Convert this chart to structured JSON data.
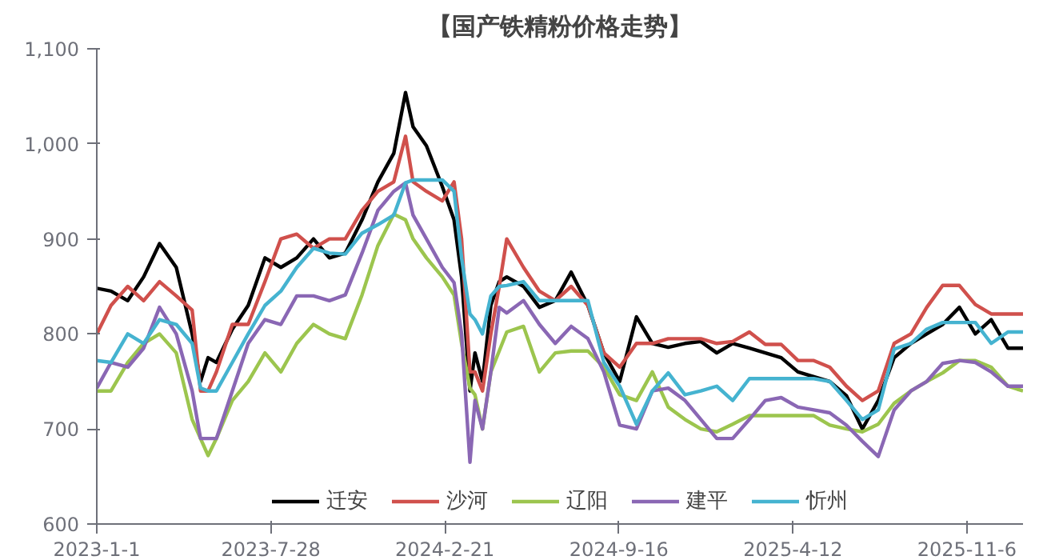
{
  "chart_data": {
    "type": "line",
    "title": "【国产铁精粉价格走势】",
    "x": [
      "2023-01-01",
      "2023-01-18",
      "2023-02-07",
      "2023-02-26",
      "2023-03-17",
      "2023-04-06",
      "2023-04-25",
      "2023-05-05",
      "2023-05-14",
      "2023-05-24",
      "2023-06-12",
      "2023-07-01",
      "2023-07-21",
      "2023-08-09",
      "2023-08-28",
      "2023-09-17",
      "2023-10-06",
      "2023-10-25",
      "2023-11-14",
      "2023-12-03",
      "2023-12-22",
      "2024-01-05",
      "2024-01-14",
      "2024-01-30",
      "2024-02-18",
      "2024-03-03",
      "2024-03-12",
      "2024-03-22",
      "2024-03-28",
      "2024-04-06",
      "2024-04-16",
      "2024-04-26",
      "2024-05-05",
      "2024-05-25",
      "2024-06-13",
      "2024-07-02",
      "2024-07-21",
      "2024-08-10",
      "2024-08-29",
      "2024-09-17",
      "2024-10-07",
      "2024-10-26",
      "2024-11-14",
      "2024-12-04",
      "2024-12-23",
      "2025-01-11",
      "2025-01-30",
      "2025-02-19",
      "2025-03-10",
      "2025-03-29",
      "2025-04-18",
      "2025-05-07",
      "2025-05-26",
      "2025-06-15",
      "2025-07-04",
      "2025-07-23",
      "2025-08-11",
      "2025-08-31",
      "2025-09-19",
      "2025-10-08",
      "2025-10-28",
      "2025-11-16",
      "2025-12-05",
      "2025-12-25",
      "2026-01-12"
    ],
    "series": [
      {
        "name": "迁安",
        "color": "#000000",
        "values": [
          848,
          845,
          835,
          860,
          895,
          870,
          800,
          750,
          775,
          770,
          805,
          830,
          880,
          870,
          880,
          900,
          880,
          885,
          920,
          960,
          990,
          1054,
          1018,
          998,
          955,
          920,
          860,
          740,
          780,
          750,
          830,
          855,
          860,
          850,
          828,
          835,
          865,
          830,
          780,
          750,
          818,
          790,
          786,
          790,
          792,
          780,
          790,
          785,
          780,
          775,
          760,
          755,
          750,
          735,
          700,
          730,
          775,
          790,
          800,
          810,
          828,
          800,
          815,
          785,
          785
        ]
      },
      {
        "name": "沙河",
        "color": "#d0504c",
        "values": [
          800,
          830,
          850,
          835,
          855,
          840,
          825,
          740,
          740,
          760,
          810,
          810,
          855,
          900,
          905,
          890,
          900,
          900,
          930,
          950,
          960,
          1008,
          960,
          950,
          940,
          960,
          900,
          760,
          760,
          740,
          800,
          850,
          900,
          870,
          845,
          835,
          850,
          830,
          780,
          765,
          790,
          790,
          795,
          795,
          795,
          790,
          792,
          802,
          789,
          789,
          772,
          772,
          765,
          745,
          730,
          740,
          790,
          800,
          828,
          851,
          851,
          831,
          821,
          821,
          821
        ]
      },
      {
        "name": "辽阳",
        "color": "#9cc54e",
        "values": [
          740,
          740,
          770,
          790,
          800,
          780,
          710,
          690,
          672,
          690,
          730,
          750,
          780,
          760,
          790,
          810,
          800,
          795,
          841,
          893,
          926,
          920,
          900,
          880,
          860,
          841,
          790,
          743,
          736,
          700,
          760,
          782,
          802,
          808,
          760,
          780,
          782,
          782,
          765,
          736,
          730,
          760,
          723,
          710,
          700,
          697,
          705,
          714,
          714,
          714,
          714,
          714,
          704,
          700,
          697,
          705,
          727,
          740,
          750,
          759,
          772,
          772,
          765,
          745,
          740
        ]
      },
      {
        "name": "建平",
        "color": "#8a67b4",
        "values": [
          743,
          770,
          765,
          785,
          828,
          800,
          740,
          690,
          690,
          690,
          740,
          790,
          815,
          810,
          840,
          840,
          835,
          841,
          885,
          930,
          950,
          959,
          925,
          900,
          870,
          854,
          800,
          665,
          730,
          700,
          760,
          828,
          822,
          835,
          810,
          790,
          808,
          795,
          760,
          704,
          700,
          740,
          743,
          730,
          710,
          690,
          690,
          710,
          730,
          733,
          723,
          720,
          717,
          704,
          687,
          671,
          720,
          740,
          750,
          769,
          772,
          770,
          760,
          745,
          745
        ]
      },
      {
        "name": "忻州",
        "color": "#45b3d0",
        "values": [
          772,
          770,
          800,
          790,
          815,
          810,
          790,
          743,
          740,
          740,
          770,
          800,
          830,
          845,
          870,
          890,
          885,
          884,
          906,
          915,
          925,
          959,
          962,
          962,
          962,
          950,
          880,
          821,
          815,
          800,
          840,
          850,
          851,
          855,
          835,
          835,
          835,
          835,
          770,
          745,
          705,
          740,
          759,
          736,
          740,
          745,
          730,
          753,
          753,
          753,
          753,
          753,
          750,
          730,
          710,
          720,
          784,
          790,
          805,
          812,
          812,
          812,
          790,
          802,
          802
        ]
      }
    ],
    "xlim": [
      "2023-01-01",
      "2026-01-12"
    ],
    "xticks": [
      {
        "value": "2023-01-01",
        "label": "2023-1-1"
      },
      {
        "value": "2023-07-28",
        "label": "2023-7-28"
      },
      {
        "value": "2024-02-21",
        "label": "2024-2-21"
      },
      {
        "value": "2024-09-16",
        "label": "2024-9-16"
      },
      {
        "value": "2025-04-12",
        "label": "2025-4-12"
      },
      {
        "value": "2025-11-06",
        "label": "2025-11-6"
      }
    ],
    "ylim": [
      600,
      1100
    ],
    "yticks": [
      600,
      700,
      800,
      900,
      {
        "value": 1000,
        "label": "1,000"
      },
      {
        "value": 1100,
        "label": "1,100"
      }
    ],
    "legend": "bottom",
    "grid": false,
    "marker": "none",
    "line_style": "solid"
  }
}
